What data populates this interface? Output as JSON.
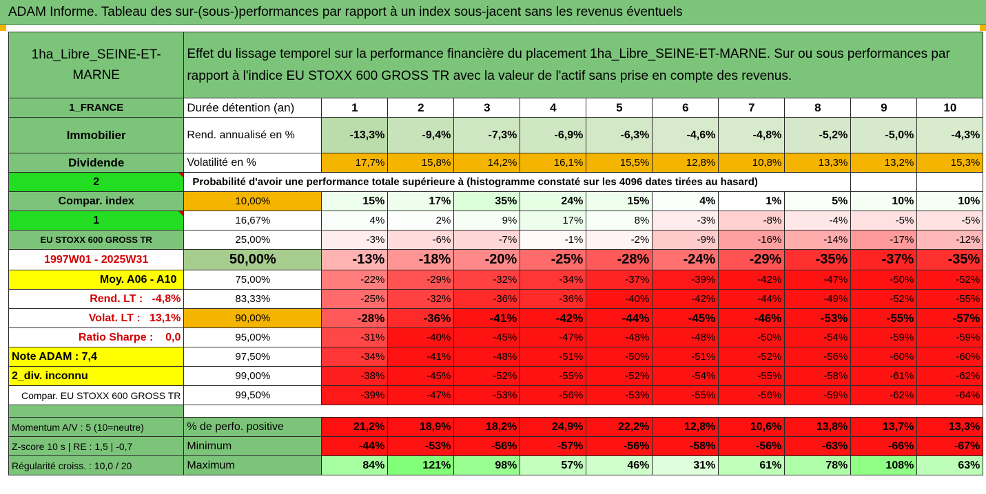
{
  "title": "ADAM Informe. Tableau des sur-(sous-)performances par rapport à un index sous-jacent sans les revenus éventuels",
  "header": {
    "fund_name": "1ha_Libre_SEINE-ET-MARNE",
    "description": "Effet du lissage temporel sur la performance financière du placement 1ha_Libre_SEINE-ET-MARNE. Sur ou sous performances par rapport à l'indice EU STOXX 600 GROSS TR avec la valeur de l'actif sans prise en compte des revenus."
  },
  "years_row": {
    "left": "1_FRANCE",
    "label": "Durée détention (an)",
    "values": [
      "1",
      "2",
      "3",
      "4",
      "5",
      "6",
      "7",
      "8",
      "9",
      "10"
    ]
  },
  "rend_row": {
    "left": "Immobilier",
    "label": "Rend. annualisé en %",
    "values": [
      "-13,3%",
      "-9,4%",
      "-7,3%",
      "-6,9%",
      "-6,3%",
      "-4,6%",
      "-4,8%",
      "-5,2%",
      "-5,0%",
      "-4,3%"
    ]
  },
  "volat_row": {
    "left": "Dividende",
    "label": "Volatilité en %",
    "values": [
      "17,7%",
      "15,8%",
      "14,2%",
      "16,1%",
      "15,5%",
      "12,8%",
      "10,8%",
      "13,3%",
      "13,2%",
      "15,3%"
    ]
  },
  "prob_header": {
    "left": "2",
    "text": "Probabilité d'avoir une performance totale supérieure à (histogramme constaté sur les 4096 dates tirées au hasard)"
  },
  "prob_rows": [
    {
      "left": "Compar. index",
      "pct": "10,00%",
      "values": [
        "15%",
        "17%",
        "35%",
        "24%",
        "15%",
        "4%",
        "1%",
        "5%",
        "10%",
        "10%"
      ]
    },
    {
      "left": "1",
      "pct": "16,67%",
      "values": [
        "4%",
        "2%",
        "9%",
        "17%",
        "8%",
        "-3%",
        "-8%",
        "-4%",
        "-5%",
        "-5%"
      ]
    },
    {
      "left": "EU STOXX 600 GROSS TR",
      "pct": "25,00%",
      "values": [
        "-3%",
        "-6%",
        "-7%",
        "-1%",
        "-2%",
        "-9%",
        "-16%",
        "-14%",
        "-17%",
        "-12%"
      ]
    },
    {
      "left": "1997W01 - 2025W31",
      "pct": "50,00%",
      "values": [
        "-13%",
        "-18%",
        "-20%",
        "-25%",
        "-28%",
        "-24%",
        "-29%",
        "-35%",
        "-37%",
        "-35%"
      ]
    },
    {
      "left": "Moy. A06 - A10",
      "pct": "75,00%",
      "values": [
        "-22%",
        "-29%",
        "-32%",
        "-34%",
        "-37%",
        "-39%",
        "-42%",
        "-47%",
        "-50%",
        "-52%"
      ]
    },
    {
      "left": "Rend. LT :   -4,8%",
      "pct": "83,33%",
      "values": [
        "-25%",
        "-32%",
        "-36%",
        "-36%",
        "-40%",
        "-42%",
        "-44%",
        "-49%",
        "-52%",
        "-55%"
      ]
    },
    {
      "left": "Volat. LT :   13,1%",
      "pct": "90,00%",
      "values": [
        "-28%",
        "-36%",
        "-41%",
        "-42%",
        "-44%",
        "-45%",
        "-46%",
        "-53%",
        "-55%",
        "-57%"
      ]
    },
    {
      "left": "Ratio Sharpe :    0,0",
      "pct": "95,00%",
      "values": [
        "-31%",
        "-40%",
        "-45%",
        "-47%",
        "-48%",
        "-48%",
        "-50%",
        "-54%",
        "-59%",
        "-59%"
      ]
    },
    {
      "left": "Note ADAM : 7,4",
      "pct": "97,50%",
      "values": [
        "-34%",
        "-41%",
        "-48%",
        "-51%",
        "-50%",
        "-51%",
        "-52%",
        "-56%",
        "-60%",
        "-60%"
      ]
    },
    {
      "left": "2_div. inconnu",
      "pct": "99,00%",
      "values": [
        "-38%",
        "-45%",
        "-52%",
        "-55%",
        "-52%",
        "-54%",
        "-55%",
        "-58%",
        "-61%",
        "-62%"
      ]
    },
    {
      "left": "Compar. EU STOXX 600 GROSS TR",
      "pct": "99,50%",
      "values": [
        "-39%",
        "-47%",
        "-53%",
        "-56%",
        "-53%",
        "-55%",
        "-56%",
        "-59%",
        "-62%",
        "-64%"
      ]
    }
  ],
  "stats_rows": [
    {
      "left": "Momentum A/V : 5 (10=neutre)",
      "label": "% de perfo. positive",
      "values": [
        "21,2%",
        "18,9%",
        "18,2%",
        "24,9%",
        "22,2%",
        "12,8%",
        "10,6%",
        "13,8%",
        "13,7%",
        "13,3%"
      ]
    },
    {
      "left": "Z-score 10 s  |  RE : 1,5  |  -0,7",
      "label": "Minimum",
      "values": [
        "-44%",
        "-53%",
        "-56%",
        "-57%",
        "-56%",
        "-58%",
        "-56%",
        "-63%",
        "-66%",
        "-67%"
      ]
    },
    {
      "left": "Régularité croiss. : 10,0 / 20",
      "label": "Maximum",
      "values": [
        "84%",
        "121%",
        "98%",
        "57%",
        "46%",
        "31%",
        "61%",
        "78%",
        "108%",
        "63%"
      ]
    }
  ],
  "colors": {
    "header_green": "#7cc47a",
    "bright_green": "#22dd22",
    "yellow": "#ffff00",
    "orange": "#f5b400",
    "light_green": "#a6cc8e",
    "label_red": "#d20000",
    "strong_red": "#ff1010"
  }
}
